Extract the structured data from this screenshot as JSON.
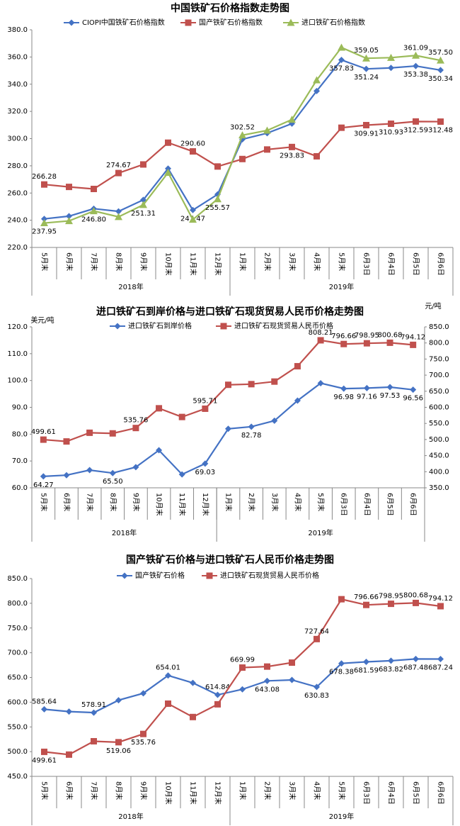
{
  "chart_data": [
    {
      "type": "line",
      "title": "中国铁矿石价格指数走势图",
      "categories": [
        "5月末",
        "6月末",
        "7月末",
        "8月末",
        "9月末",
        "10月末",
        "11月末",
        "12月末",
        "1月末",
        "2月末",
        "3月末",
        "4月末",
        "5月末",
        "6月3日",
        "6月4日",
        "6月5日",
        "6月6日"
      ],
      "groups": [
        {
          "name": "2018年",
          "size": 8
        },
        {
          "name": "2019年",
          "size": 9
        }
      ],
      "ylim": [
        220,
        380
      ],
      "yticks": [
        {
          "value": 220,
          "label": "220.0"
        },
        {
          "value": 240,
          "label": "240.0"
        },
        {
          "value": 260,
          "label": "260.0"
        },
        {
          "value": 280,
          "label": "280.0"
        },
        {
          "value": 300,
          "label": "300.0"
        },
        {
          "value": 320,
          "label": "320.0"
        },
        {
          "value": 340,
          "label": "340.0"
        },
        {
          "value": 360,
          "label": "360.0"
        },
        {
          "value": 380,
          "label": "380.0"
        }
      ],
      "series": [
        {
          "name": "CIOPI中国铁矿石价格指数",
          "color": "#4472c4",
          "marker": "diamond",
          "values": [
            241,
            243,
            248.5,
            246.5,
            255,
            278,
            247.47,
            259,
            299.5,
            304,
            311,
            335,
            357.83,
            351.24,
            352,
            353.38,
            350.34
          ],
          "value_labels": [
            null,
            null,
            null,
            null,
            null,
            null,
            "247.47",
            null,
            null,
            null,
            null,
            null,
            "357.83",
            "351.24",
            null,
            "353.38",
            "350.34"
          ]
        },
        {
          "name": "国产铁矿石价格指数",
          "color": "#c0504d",
          "marker": "square",
          "values": [
            266.28,
            264.5,
            263,
            274.67,
            281,
            297,
            290.6,
            279.5,
            285,
            292,
            293.83,
            287,
            308,
            309.91,
            310.93,
            312.59,
            312.48
          ],
          "value_labels": [
            "266.28",
            null,
            null,
            "274.67",
            null,
            null,
            "290.60",
            null,
            null,
            null,
            "293.83",
            null,
            null,
            "309.91",
            "310.93",
            "312.59",
            "312.48"
          ]
        },
        {
          "name": "进口铁矿石价格指数",
          "color": "#9bbb59",
          "marker": "triangle",
          "values": [
            237.95,
            239.5,
            246.8,
            242.5,
            251.31,
            275,
            240.5,
            255.57,
            302.52,
            306,
            314,
            343,
            367,
            359.05,
            359.5,
            361.09,
            357.5
          ],
          "value_labels": [
            "237.95",
            null,
            "246.80",
            null,
            "251.31",
            null,
            null,
            "255.57",
            "302.52",
            null,
            null,
            null,
            null,
            "359.05",
            null,
            "361.09",
            "357.50"
          ]
        }
      ]
    },
    {
      "type": "line",
      "title": "进口铁矿石到岸价格与进口铁矿石现货贸易人民币价格走势图",
      "y_unit": "美元/吨",
      "y2_unit": "元/吨",
      "categories": [
        "5月末",
        "6月末",
        "7月末",
        "8月末",
        "9月末",
        "10月末",
        "11月末",
        "12月末",
        "1月末",
        "2月末",
        "3月末",
        "4月末",
        "5月末",
        "6月3日",
        "6月4日",
        "6月5日",
        "6月6日"
      ],
      "groups": [
        {
          "name": "2018年",
          "size": 8
        },
        {
          "name": "2019年",
          "size": 9
        }
      ],
      "ylim": [
        60,
        120
      ],
      "yticks": [
        {
          "value": 60,
          "label": "60.0"
        },
        {
          "value": 70,
          "label": "70.0"
        },
        {
          "value": 80,
          "label": "80.0"
        },
        {
          "value": 90,
          "label": "90.0"
        },
        {
          "value": 100,
          "label": "100.0"
        },
        {
          "value": 110,
          "label": "110.0"
        },
        {
          "value": 120,
          "label": "120.0"
        }
      ],
      "y2lim": [
        350,
        850
      ],
      "y2ticks": [
        {
          "value": 350,
          "label": "350.0"
        },
        {
          "value": 400,
          "label": "400.0"
        },
        {
          "value": 450,
          "label": "450.0"
        },
        {
          "value": 500,
          "label": "500.0"
        },
        {
          "value": 550,
          "label": "550.0"
        },
        {
          "value": 600,
          "label": "600.0"
        },
        {
          "value": 650,
          "label": "650.0"
        },
        {
          "value": 700,
          "label": "700.0"
        },
        {
          "value": 750,
          "label": "750.0"
        },
        {
          "value": 800,
          "label": "800.0"
        },
        {
          "value": 850,
          "label": "850.0"
        }
      ],
      "series": [
        {
          "name": "进口铁矿石到岸价格",
          "color": "#4472c4",
          "marker": "diamond",
          "values": [
            64.27,
            64.7,
            66.6,
            65.5,
            67.7,
            74,
            65,
            69.03,
            82,
            82.78,
            85,
            92.5,
            99,
            96.98,
            97.16,
            97.53,
            96.56
          ],
          "value_labels": [
            "64.27",
            null,
            null,
            "65.50",
            null,
            null,
            null,
            "69.03",
            null,
            "82.78",
            null,
            null,
            null,
            "96.98",
            "97.16",
            "97.53",
            "96.56"
          ]
        },
        {
          "name": "进口铁矿石现货贸易人民币价格",
          "color": "#c0504d",
          "marker": "square",
          "axis": "y2",
          "values": [
            499.61,
            494,
            521,
            519.06,
            535.76,
            597,
            570,
            595.71,
            669.99,
            672,
            680,
            727.64,
            808.21,
            796.66,
            798.95,
            800.68,
            794.12
          ],
          "value_labels": [
            "499.61",
            null,
            null,
            null,
            "535.76",
            null,
            null,
            "595.71",
            null,
            null,
            null,
            null,
            "808.21",
            "796.66",
            "798.95",
            "800.68",
            "794.12"
          ]
        }
      ]
    },
    {
      "type": "line",
      "title": "国产铁矿石价格与进口铁矿石人民币价格走势图",
      "categories": [
        "5月末",
        "6月末",
        "7月末",
        "8月末",
        "9月末",
        "10月末",
        "11月末",
        "12月末",
        "1月末",
        "2月末",
        "3月末",
        "4月末",
        "5月末",
        "6月3日",
        "6月4日",
        "6月5日",
        "6月6日"
      ],
      "groups": [
        {
          "name": "2018年",
          "size": 8
        },
        {
          "name": "2019年",
          "size": 9
        }
      ],
      "ylim": [
        450,
        850
      ],
      "yticks": [
        {
          "value": 450,
          "label": "450.0"
        },
        {
          "value": 500,
          "label": "500.0"
        },
        {
          "value": 550,
          "label": "550.0"
        },
        {
          "value": 600,
          "label": "600.0"
        },
        {
          "value": 650,
          "label": "650.0"
        },
        {
          "value": 700,
          "label": "700.0"
        },
        {
          "value": 750,
          "label": "750.0"
        },
        {
          "value": 800,
          "label": "800.0"
        },
        {
          "value": 850,
          "label": "850.0"
        }
      ],
      "series": [
        {
          "name": "国产铁矿石价格",
          "color": "#4472c4",
          "marker": "diamond",
          "values": [
            585.64,
            581,
            578.91,
            604,
            618,
            654.01,
            639,
            614.84,
            626,
            643.08,
            645,
            630.83,
            678.38,
            681.59,
            683.82,
            687.48,
            687.24
          ],
          "value_labels": [
            "585.64",
            null,
            "578.91",
            null,
            null,
            "654.01",
            null,
            "614.84",
            null,
            "643.08",
            null,
            "630.83",
            "678.38",
            "681.59",
            "683.82",
            "687.48",
            "687.24"
          ]
        },
        {
          "name": "进口铁矿石现货贸易人民币价格",
          "color": "#c0504d",
          "marker": "square",
          "values": [
            499.61,
            494,
            521,
            519.06,
            535.76,
            597,
            570,
            595.71,
            669.99,
            672,
            680,
            727.64,
            808.21,
            796.66,
            798.95,
            800.68,
            794.12
          ],
          "value_labels": [
            "499.61",
            null,
            null,
            "519.06",
            "535.76",
            null,
            null,
            null,
            "669.99",
            null,
            null,
            "727.64",
            null,
            "796.66",
            "798.95",
            "800.68",
            "794.12"
          ]
        }
      ]
    }
  ]
}
